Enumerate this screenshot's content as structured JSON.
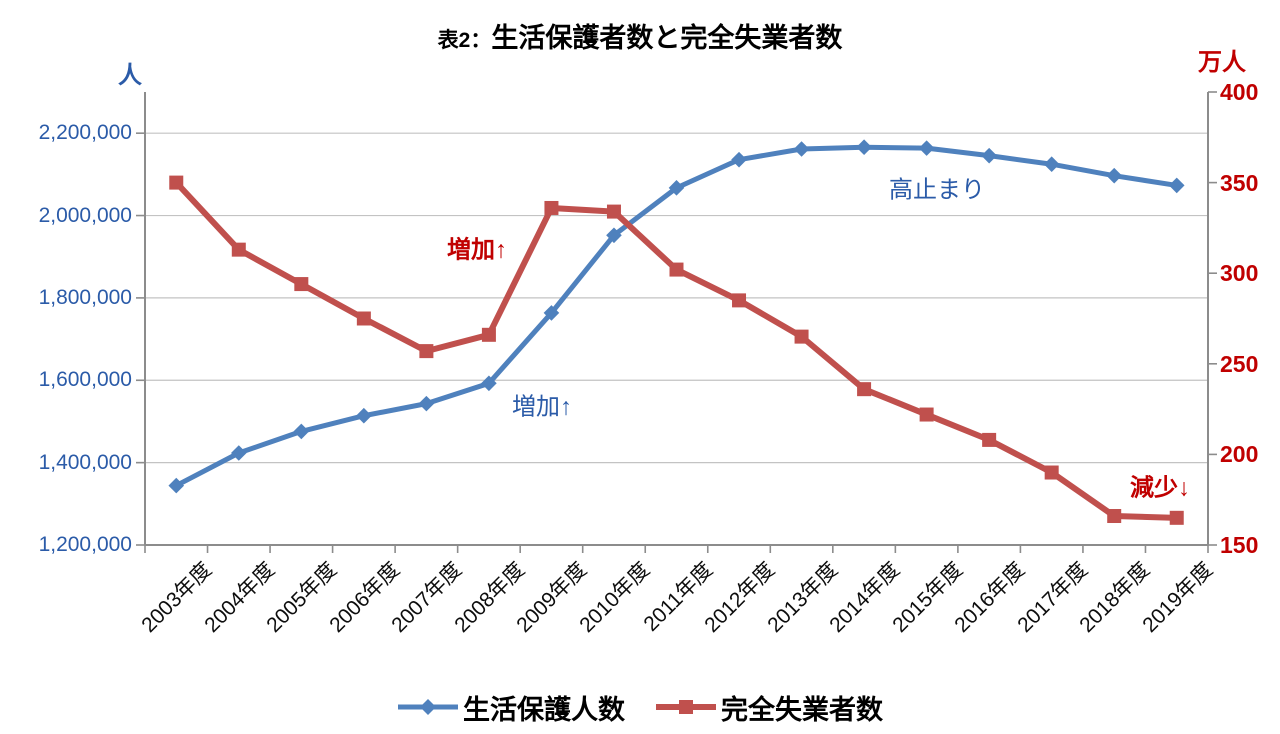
{
  "title": {
    "prefix": "表2：",
    "main": "生活保護者数と完全失業者数"
  },
  "chart_data": {
    "type": "line",
    "title": "表2：生活保護者数と完全失業者数",
    "categories": [
      "2003年度",
      "2004年度",
      "2005年度",
      "2006年度",
      "2007年度",
      "2008年度",
      "2009年度",
      "2010年度",
      "2011年度",
      "2012年度",
      "2013年度",
      "2014年度",
      "2015年度",
      "2016年度",
      "2017年度",
      "2018年度",
      "2019年度"
    ],
    "series": [
      {
        "name": "生活保護人数",
        "axis": "left",
        "unit": "人",
        "color": "#4F81BD",
        "marker": "diamond",
        "values": [
          1344327,
          1423388,
          1475838,
          1513892,
          1543321,
          1592620,
          1763572,
          1952063,
          2067244,
          2135708,
          2161612,
          2165895,
          2163685,
          2145415,
          2124631,
          2096838,
          2073117
        ]
      },
      {
        "name": "完全失業者数",
        "axis": "right",
        "unit": "万人",
        "color": "#C0504D",
        "marker": "square",
        "values": [
          350,
          313,
          294,
          275,
          257,
          266,
          336,
          334,
          302,
          285,
          265,
          236,
          222,
          208,
          190,
          166,
          165
        ]
      }
    ],
    "left_axis": {
      "unit": "人",
      "min": 1200000,
      "max": 2300000,
      "tick_interval": 200000,
      "tick_labels": [
        "2,200,000",
        "2,000,000",
        "1,800,000",
        "1,600,000",
        "1,400,000",
        "1,200,000"
      ],
      "text_color": "#2B5BA8"
    },
    "right_axis": {
      "unit": "万人",
      "min": 150,
      "max": 400,
      "tick_interval": 50,
      "tick_labels": [
        "400",
        "350",
        "300",
        "250",
        "200",
        "150"
      ],
      "text_color": "#C00000"
    },
    "grid": "horizontal-major",
    "legend_position": "bottom",
    "annotations": [
      {
        "text": "増加↑",
        "series": "完全失業者数",
        "color": "#C00000"
      },
      {
        "text": "増加↑",
        "series": "生活保護人数",
        "color": "#2B5BA8"
      },
      {
        "text": "高止まり",
        "series": "生活保護人数",
        "color": "#2B5BA8"
      },
      {
        "text": "減少↓",
        "series": "完全失業者数",
        "color": "#C00000"
      }
    ],
    "colors": {
      "grid": "#C3C3C3",
      "axis": "#8C8C8C"
    }
  }
}
